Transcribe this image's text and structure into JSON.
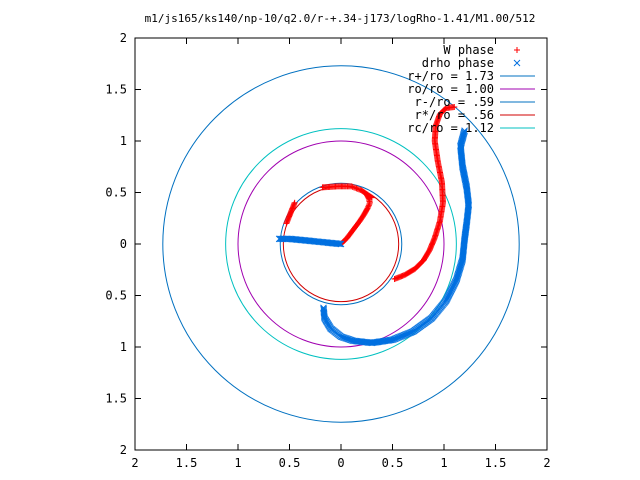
{
  "chart_data": {
    "type": "scatter",
    "title": "m1/js165/ks140/np-10/q2.0/r-+.34-j173/logRho-1.41/M1.00/512",
    "xlim": [
      -2,
      2
    ],
    "ylim": [
      -2,
      2
    ],
    "x_ticks": [
      -2,
      -1.5,
      -1,
      -0.5,
      0,
      0.5,
      1,
      1.5,
      2
    ],
    "y_ticks": [
      -2,
      -1.5,
      -1,
      -0.5,
      0,
      0.5,
      1,
      1.5,
      2
    ],
    "x_tick_labels": [
      "2",
      "1.5",
      "1",
      "0.5",
      "0",
      "0.5",
      "1",
      "1.5",
      "2"
    ],
    "y_tick_labels": [
      "2",
      "1.5",
      "1",
      "0.5",
      "0",
      "0.5",
      "1",
      "1.5",
      "2"
    ],
    "grid": false,
    "legend_position": "top-right",
    "series": [
      {
        "name": "W phase",
        "kind": "points",
        "marker": "+",
        "color": "#ff0000",
        "points": [
          [
            -0.53,
            0.2
          ],
          [
            -0.45,
            0.4
          ],
          [
            -0.18,
            0.55
          ],
          [
            -0.03,
            0.56
          ],
          [
            0.05,
            0.56
          ],
          [
            0.1,
            0.56
          ],
          [
            0.15,
            0.54
          ],
          [
            0.2,
            0.52
          ],
          [
            0.3,
            0.45
          ],
          [
            0.005,
            0.005
          ],
          [
            0.06,
            0.06
          ],
          [
            0.12,
            0.14
          ],
          [
            0.18,
            0.22
          ],
          [
            0.22,
            0.28
          ],
          [
            0.26,
            0.35
          ],
          [
            0.28,
            0.4
          ],
          [
            0.27,
            0.44
          ],
          [
            0.25,
            0.48
          ],
          [
            0.52,
            -0.34
          ],
          [
            0.62,
            -0.3
          ],
          [
            0.72,
            -0.24
          ],
          [
            0.8,
            -0.16
          ],
          [
            0.86,
            -0.06
          ],
          [
            0.91,
            0.06
          ],
          [
            0.96,
            0.22
          ],
          [
            0.99,
            0.4
          ],
          [
            0.98,
            0.6
          ],
          [
            0.94,
            0.8
          ],
          [
            0.91,
            1.0
          ],
          [
            0.92,
            1.15
          ],
          [
            0.96,
            1.26
          ],
          [
            1.02,
            1.32
          ],
          [
            1.1,
            1.33
          ]
        ]
      },
      {
        "name": "drho phase",
        "kind": "points",
        "marker": "x",
        "color": "#0070e0",
        "points": [
          [
            -0.6,
            0.05
          ],
          [
            -0.5,
            0.05
          ],
          [
            -0.4,
            0.04
          ],
          [
            -0.3,
            0.03
          ],
          [
            -0.2,
            0.02
          ],
          [
            -0.1,
            0.01
          ],
          [
            0.0,
            0.0
          ],
          [
            -0.17,
            -0.62
          ],
          [
            -0.16,
            -0.72
          ],
          [
            -0.1,
            -0.82
          ],
          [
            0.0,
            -0.9
          ],
          [
            0.12,
            -0.94
          ],
          [
            0.3,
            -0.96
          ],
          [
            0.5,
            -0.93
          ],
          [
            0.7,
            -0.85
          ],
          [
            0.88,
            -0.72
          ],
          [
            1.02,
            -0.55
          ],
          [
            1.12,
            -0.35
          ],
          [
            1.18,
            -0.15
          ],
          [
            1.2,
            0.05
          ],
          [
            1.22,
            0.2
          ],
          [
            1.24,
            0.38
          ],
          [
            1.22,
            0.55
          ],
          [
            1.18,
            0.75
          ],
          [
            1.16,
            0.95
          ],
          [
            1.2,
            1.1
          ]
        ]
      },
      {
        "name": "r+/ro = 1.73",
        "kind": "circle",
        "r": 1.73,
        "color": "#0070c0"
      },
      {
        "name": "ro/ro = 1.00",
        "kind": "circle",
        "r": 1.0,
        "color": "#a000b0"
      },
      {
        "name": "r-/ro = .59",
        "kind": "circle",
        "r": 0.59,
        "color": "#0070c0"
      },
      {
        "name": "r*/ro = .56",
        "kind": "circle",
        "r": 0.56,
        "color": "#d00000"
      },
      {
        "name": "rc/ro = 1.12",
        "kind": "circle",
        "r": 1.12,
        "color": "#00c0c0"
      }
    ]
  }
}
